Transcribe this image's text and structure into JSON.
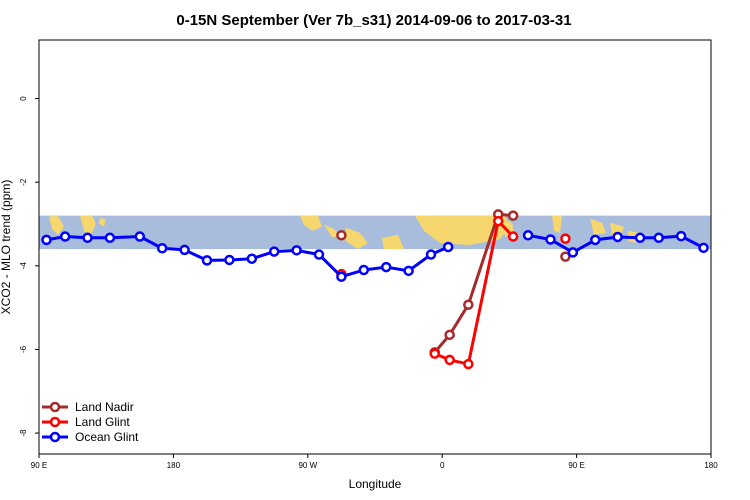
{
  "chart_data": {
    "type": "line",
    "title": "0-15N September (Ver 7b_s31)   2014-09-06 to 2017-03-31",
    "xlabel": "Longitude",
    "ylabel": "XCO2 - MLO trend (ppm)",
    "x_ticks": [
      {
        "value": 90,
        "label": "90 E"
      },
      {
        "value": 180,
        "label": "180"
      },
      {
        "value": 270,
        "label": "90 W"
      },
      {
        "value": 360,
        "label": "0"
      },
      {
        "value": 450,
        "label": "90 E"
      },
      {
        "value": 540,
        "label": "180"
      }
    ],
    "y_ticks": [
      {
        "value": 0,
        "label": "0"
      },
      {
        "value": -2,
        "label": "-2"
      },
      {
        "value": -4,
        "label": "-4"
      },
      {
        "value": -6,
        "label": "-6"
      },
      {
        "value": -8,
        "label": "-8"
      }
    ],
    "xlim": [
      90,
      540
    ],
    "ylim": [
      -8.5,
      1.4
    ],
    "map_band_ylim": [
      -3.6,
      -2.8
    ],
    "legend_position": "bottom-left",
    "series": [
      {
        "name": "Land Nadir",
        "color": "#a52a2a",
        "points": [
          [
            292.5,
            -3.27
          ],
          [
            355,
            -6.07
          ],
          [
            365,
            -5.65
          ],
          [
            377.5,
            -4.93
          ],
          [
            397.5,
            -2.77
          ],
          [
            407.5,
            -2.8
          ],
          [
            442.5,
            -3.78
          ]
        ],
        "connected": [
          [
            1,
            2,
            3,
            4,
            5
          ]
        ]
      },
      {
        "name": "Land Glint",
        "color": "#ff0000",
        "points": [
          [
            292.5,
            -4.2
          ],
          [
            355,
            -6.1
          ],
          [
            365,
            -6.25
          ],
          [
            377.5,
            -6.35
          ],
          [
            397.5,
            -2.93
          ],
          [
            407.5,
            -3.3
          ],
          [
            442.5,
            -3.35
          ]
        ],
        "connected": [
          [
            1,
            2,
            3,
            4,
            5
          ]
        ]
      },
      {
        "name": "Ocean Glint",
        "color": "#0000ff",
        "points": [
          [
            95,
            -3.38
          ],
          [
            107.5,
            -3.3
          ],
          [
            122.5,
            -3.33
          ],
          [
            137.5,
            -3.33
          ],
          [
            157.5,
            -3.3
          ],
          [
            172.5,
            -3.58
          ],
          [
            187.5,
            -3.62
          ],
          [
            202.5,
            -3.87
          ],
          [
            217.5,
            -3.86
          ],
          [
            232.5,
            -3.83
          ],
          [
            247.5,
            -3.66
          ],
          [
            262.5,
            -3.63
          ],
          [
            277.5,
            -3.73
          ],
          [
            292.5,
            -4.26
          ],
          [
            307.5,
            -4.1
          ],
          [
            322.5,
            -4.03
          ],
          [
            337.5,
            -4.12
          ],
          [
            352.5,
            -3.73
          ],
          [
            364,
            -3.55
          ],
          [
            417.5,
            -3.27
          ],
          [
            432.5,
            -3.37
          ],
          [
            447.5,
            -3.68
          ],
          [
            462.5,
            -3.38
          ],
          [
            477.5,
            -3.31
          ],
          [
            492.5,
            -3.33
          ],
          [
            505,
            -3.33
          ],
          [
            520,
            -3.29
          ],
          [
            535,
            -3.57
          ]
        ],
        "connected": [
          [
            0,
            1,
            2,
            3,
            4,
            5,
            6,
            7,
            8,
            9,
            10,
            11,
            12,
            13,
            14,
            15,
            16,
            17,
            18
          ],
          [
            19,
            20,
            21,
            22,
            23,
            24,
            25,
            26,
            27
          ]
        ]
      }
    ]
  }
}
